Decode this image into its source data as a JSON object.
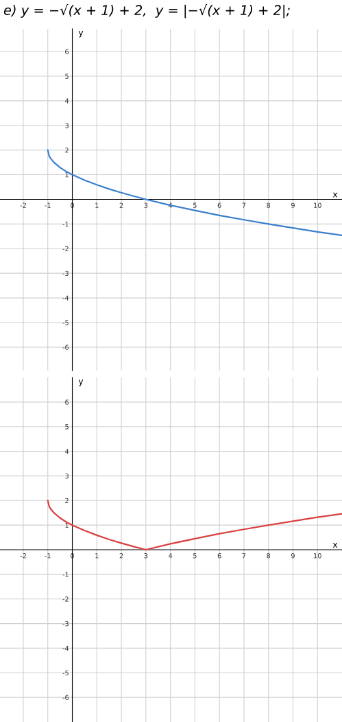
{
  "chart_data": [
    {
      "type": "line",
      "title": "e) y = −√(x + 1) + 2,  y = |−√(x + 1) + 2|;",
      "xlabel": "x",
      "ylabel": "y",
      "x": [
        -1,
        -0.95,
        -0.9,
        -0.75,
        -0.5,
        -0.25,
        0,
        0.5,
        1,
        1.5,
        2,
        2.5,
        3,
        4,
        5,
        6,
        7,
        8,
        9,
        10,
        11
      ],
      "series": [
        {
          "color": "#3a7fcf",
          "values": [
            2,
            1.78,
            1.68,
            1.5,
            1.29,
            1.13,
            1,
            0.78,
            0.59,
            0.42,
            0.27,
            0.13,
            0,
            -0.24,
            -0.45,
            -0.65,
            -0.83,
            -1.0,
            -1.16,
            -1.32,
            -1.46
          ]
        }
      ],
      "xlim": [
        -2.95,
        11
      ],
      "ylim": [
        -6.95,
        6.92
      ],
      "xticks": [
        -2,
        -1,
        0,
        1,
        2,
        3,
        4,
        5,
        6,
        7,
        8,
        9,
        10
      ],
      "yticks": [
        -6,
        -5,
        -4,
        -3,
        -2,
        -1,
        1,
        2,
        3,
        4,
        5,
        6
      ],
      "grid": true,
      "legend": false
    },
    {
      "type": "line",
      "xlabel": "x",
      "ylabel": "y",
      "x": [
        -1,
        -0.95,
        -0.9,
        -0.75,
        -0.5,
        -0.25,
        0,
        0.5,
        1,
        1.5,
        2,
        2.5,
        3,
        4,
        5,
        6,
        7,
        8,
        9,
        10,
        11
      ],
      "series": [
        {
          "color": "#d94040",
          "values": [
            2,
            1.78,
            1.68,
            1.5,
            1.29,
            1.13,
            1,
            0.78,
            0.59,
            0.42,
            0.27,
            0.13,
            0,
            0.24,
            0.45,
            0.65,
            0.83,
            1.0,
            1.16,
            1.32,
            1.46
          ]
        }
      ],
      "xlim": [
        -2.95,
        11
      ],
      "ylim": [
        -7.0,
        7.0
      ],
      "xticks": [
        -2,
        -1,
        0,
        1,
        2,
        3,
        4,
        5,
        6,
        7,
        8,
        9,
        10
      ],
      "yticks": [
        -6,
        -5,
        -4,
        -3,
        -2,
        -1,
        1,
        2,
        3,
        4,
        5,
        6
      ],
      "grid": true,
      "legend": false
    }
  ]
}
